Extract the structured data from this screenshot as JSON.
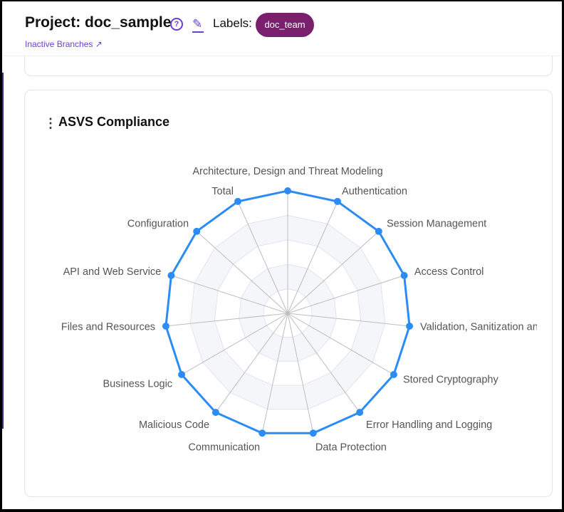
{
  "header": {
    "title": "Project: doc_sample",
    "help_icon": "?",
    "labels_label": "Labels:",
    "label_badge": "doc_team",
    "inactive_link": "Inactive Branches ↗"
  },
  "card": {
    "title": "ASVS Compliance",
    "menu_icon": "⋮"
  },
  "chart_data": {
    "type": "radar",
    "title": "ASVS Compliance",
    "max": 100,
    "rings": 5,
    "color": "#2b8cf5",
    "indicators": [
      "Architecture, Design and Threat Modeling",
      "Authentication",
      "Session Management",
      "Access Control",
      "Validation, Sanitization and Encoding",
      "Stored Cryptography",
      "Error Handling and Logging",
      "Data Protection",
      "Communication",
      "Malicious Code",
      "Business Logic",
      "Files and Resources",
      "API and Web Service",
      "Configuration",
      "Total"
    ],
    "values": [
      100,
      100,
      100,
      100,
      100,
      100,
      100,
      100,
      100,
      100,
      100,
      100,
      100,
      100,
      100
    ]
  }
}
